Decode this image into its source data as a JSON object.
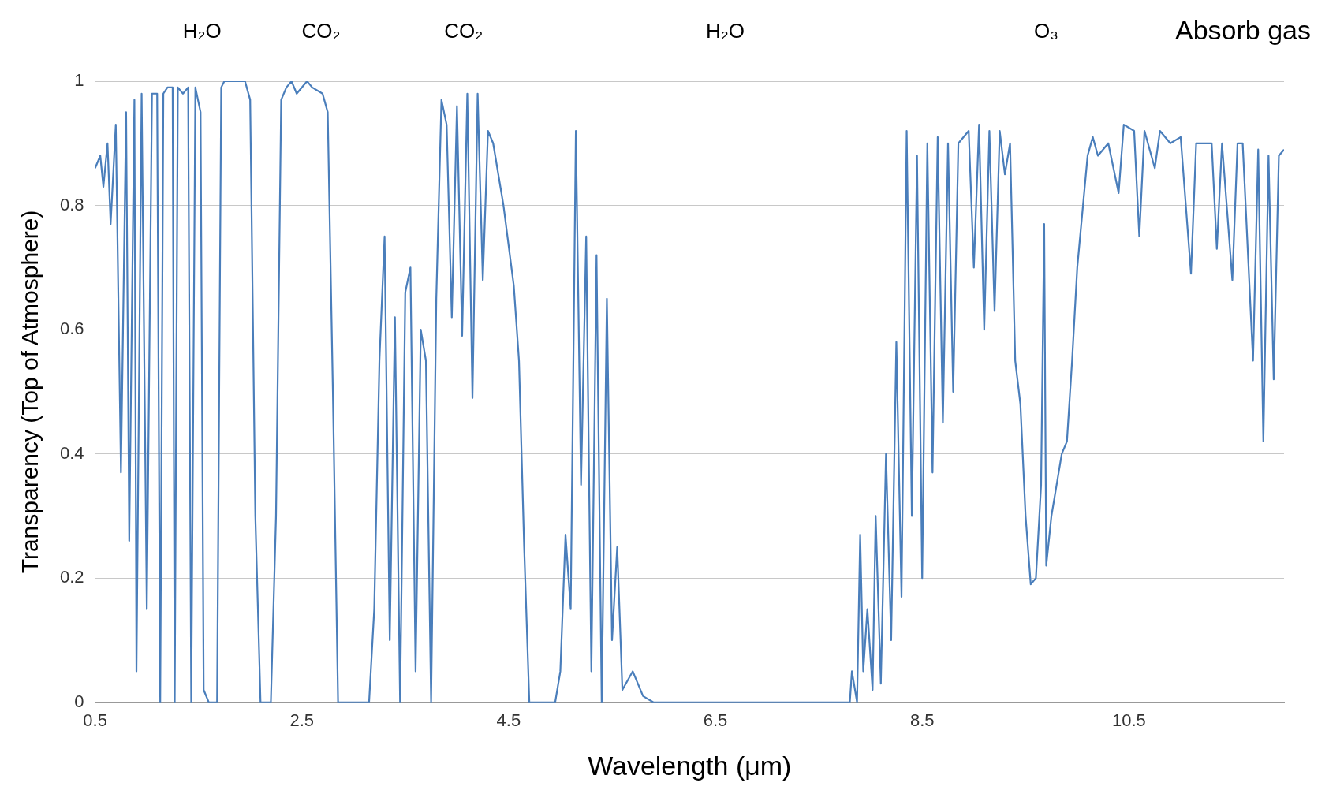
{
  "chart_data": {
    "type": "line",
    "xlabel": "Wavelength (μm)",
    "ylabel": "Transparency (Top of Atmosphere)",
    "xlim": [
      0.5,
      12
    ],
    "xticks": [
      0.5,
      2.5,
      4.5,
      6.5,
      8.5,
      10.5
    ],
    "ylim": [
      0,
      1
    ],
    "yticks": [
      0,
      0.2,
      0.4,
      0.6,
      0.8,
      1
    ],
    "grid": "y",
    "legend": false,
    "marker": "none",
    "line_style": "solid",
    "annotations": [
      "H₂O",
      "CO₂",
      "CO₂",
      "H₂O",
      "O₃",
      "Absorb gas"
    ],
    "series": [
      {
        "color": "#4a7ebb",
        "x": [
          0.5,
          0.55,
          0.58,
          0.62,
          0.65,
          0.7,
          0.75,
          0.8,
          0.83,
          0.88,
          0.9,
          0.95,
          1.0,
          1.05,
          1.1,
          1.13,
          1.16,
          1.2,
          1.25,
          1.27,
          1.3,
          1.35,
          1.4,
          1.43,
          1.47,
          1.52,
          1.55,
          1.6,
          1.68,
          1.72,
          1.75,
          1.85,
          1.95,
          2.0,
          2.05,
          2.1,
          2.15,
          2.2,
          2.25,
          2.3,
          2.35,
          2.4,
          2.45,
          2.55,
          2.6,
          2.7,
          2.75,
          2.8,
          2.85,
          2.95,
          3.0,
          3.1,
          3.15,
          3.2,
          3.25,
          3.3,
          3.35,
          3.4,
          3.45,
          3.5,
          3.55,
          3.6,
          3.65,
          3.7,
          3.75,
          3.8,
          3.85,
          3.9,
          3.95,
          4.0,
          4.05,
          4.1,
          4.15,
          4.2,
          4.25,
          4.3,
          4.35,
          4.45,
          4.55,
          4.6,
          4.65,
          4.7,
          4.8,
          4.95,
          5.0,
          5.05,
          5.1,
          5.15,
          5.2,
          5.25,
          5.3,
          5.35,
          5.4,
          5.45,
          5.5,
          5.55,
          5.6,
          5.7,
          5.8,
          5.9,
          6.5,
          7.5,
          7.8,
          7.82,
          7.87,
          7.9,
          7.93,
          7.97,
          8.02,
          8.05,
          8.1,
          8.15,
          8.2,
          8.25,
          8.3,
          8.35,
          8.4,
          8.45,
          8.5,
          8.55,
          8.6,
          8.65,
          8.7,
          8.75,
          8.8,
          8.85,
          8.95,
          9.0,
          9.05,
          9.1,
          9.15,
          9.2,
          9.25,
          9.3,
          9.35,
          9.4,
          9.45,
          9.5,
          9.55,
          9.6,
          9.65,
          9.68,
          9.7,
          9.75,
          9.8,
          9.85,
          9.9,
          9.95,
          10.0,
          10.1,
          10.15,
          10.2,
          10.3,
          10.4,
          10.45,
          10.55,
          10.6,
          10.65,
          10.75,
          10.8,
          10.9,
          11.0,
          11.1,
          11.15,
          11.3,
          11.35,
          11.4,
          11.5,
          11.55,
          11.6,
          11.7,
          11.75,
          11.8,
          11.85,
          11.9,
          11.95,
          12.0
        ],
        "values": [
          0.86,
          0.88,
          0.83,
          0.9,
          0.77,
          0.93,
          0.37,
          0.95,
          0.26,
          0.97,
          0.05,
          0.98,
          0.15,
          0.98,
          0.98,
          0,
          0.98,
          0.99,
          0.99,
          0,
          0.99,
          0.98,
          0.99,
          0,
          0.99,
          0.95,
          0.02,
          0,
          0,
          0.99,
          1,
          1,
          1,
          0.97,
          0.3,
          0,
          0,
          0,
          0.3,
          0.97,
          0.99,
          1,
          0.98,
          1,
          0.99,
          0.98,
          0.95,
          0.5,
          0,
          0,
          0,
          0,
          0,
          0.15,
          0.55,
          0.75,
          0.1,
          0.62,
          0,
          0.66,
          0.7,
          0.05,
          0.6,
          0.55,
          0,
          0.65,
          0.97,
          0.93,
          0.62,
          0.96,
          0.59,
          0.98,
          0.49,
          0.98,
          0.68,
          0.92,
          0.9,
          0.8,
          0.67,
          0.55,
          0.25,
          0,
          0,
          0,
          0.05,
          0.27,
          0.15,
          0.92,
          0.35,
          0.75,
          0.05,
          0.72,
          0,
          0.65,
          0.1,
          0.25,
          0.02,
          0.05,
          0.01,
          0,
          0,
          0,
          0,
          0.05,
          0,
          0.27,
          0.05,
          0.15,
          0.02,
          0.3,
          0.03,
          0.4,
          0.1,
          0.58,
          0.17,
          0.92,
          0.3,
          0.88,
          0.2,
          0.9,
          0.37,
          0.91,
          0.45,
          0.9,
          0.5,
          0.9,
          0.92,
          0.7,
          0.93,
          0.6,
          0.92,
          0.63,
          0.92,
          0.85,
          0.9,
          0.55,
          0.48,
          0.3,
          0.19,
          0.2,
          0.35,
          0.77,
          0.22,
          0.3,
          0.35,
          0.4,
          0.42,
          0.55,
          0.7,
          0.88,
          0.91,
          0.88,
          0.9,
          0.82,
          0.93,
          0.92,
          0.75,
          0.92,
          0.86,
          0.92,
          0.9,
          0.91,
          0.69,
          0.9,
          0.9,
          0.73,
          0.9,
          0.68,
          0.9,
          0.9,
          0.55,
          0.89,
          0.42,
          0.88,
          0.52,
          0.88,
          0.89
        ]
      }
    ]
  }
}
